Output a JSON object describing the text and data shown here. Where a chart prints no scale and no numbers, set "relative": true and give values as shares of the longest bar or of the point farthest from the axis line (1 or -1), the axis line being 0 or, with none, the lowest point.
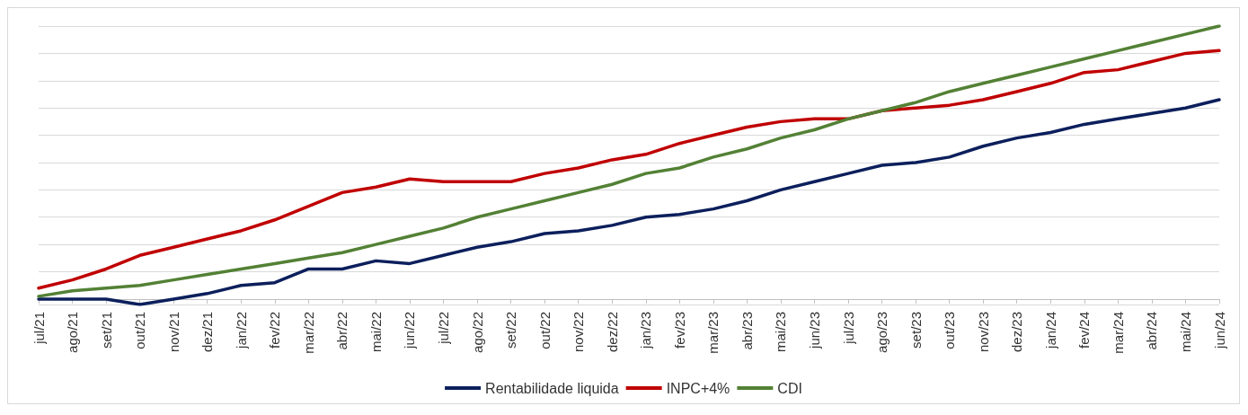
{
  "chart_data": {
    "type": "line",
    "relative": true,
    "grid": "y",
    "legend": "bottom",
    "marker": "none",
    "line_style": "solid",
    "categories": [
      "jul/21",
      "ago/21",
      "set/21",
      "out/21",
      "nov/21",
      "dez/21",
      "jan/22",
      "fev/22",
      "mar/22",
      "abr/22",
      "mai/22",
      "jun/22",
      "jul/22",
      "ago/22",
      "set/22",
      "out/22",
      "nov/22",
      "dez/22",
      "jan/23",
      "fev/23",
      "mar/23",
      "abr/23",
      "mai/23",
      "jun/23",
      "jul/23",
      "ago/23",
      "set/23",
      "out/23",
      "nov/23",
      "dez/23",
      "jan/24",
      "fev/24",
      "mar/24",
      "abr/24",
      "mai/24",
      "jun/24"
    ],
    "series": [
      {
        "name": "Rentabilidade liquida",
        "color": "#0c1f5c",
        "values": [
          0,
          0,
          0,
          -0.02,
          0,
          0.02,
          0.05,
          0.06,
          0.11,
          0.11,
          0.14,
          0.13,
          0.16,
          0.19,
          0.21,
          0.24,
          0.25,
          0.27,
          0.3,
          0.31,
          0.33,
          0.36,
          0.4,
          0.43,
          0.46,
          0.49,
          0.5,
          0.52,
          0.56,
          0.59,
          0.61,
          0.64,
          0.66,
          0.68,
          0.7,
          0.73
        ]
      },
      {
        "name": "INPC+4%",
        "color": "#c00000",
        "values": [
          0.04,
          0.07,
          0.11,
          0.16,
          0.19,
          0.22,
          0.25,
          0.29,
          0.34,
          0.39,
          0.41,
          0.44,
          0.43,
          0.43,
          0.43,
          0.46,
          0.48,
          0.51,
          0.53,
          0.57,
          0.6,
          0.63,
          0.65,
          0.66,
          0.66,
          0.69,
          0.7,
          0.71,
          0.73,
          0.76,
          0.79,
          0.83,
          0.84,
          0.87,
          0.9,
          0.91
        ]
      },
      {
        "name": "CDI",
        "color": "#538135",
        "values": [
          0.01,
          0.03,
          0.04,
          0.05,
          0.07,
          0.09,
          0.11,
          0.13,
          0.15,
          0.17,
          0.2,
          0.23,
          0.26,
          0.3,
          0.33,
          0.36,
          0.39,
          0.42,
          0.46,
          0.48,
          0.52,
          0.55,
          0.59,
          0.62,
          0.66,
          0.69,
          0.72,
          0.76,
          0.79,
          0.82,
          0.85,
          0.88,
          0.91,
          0.94,
          0.97,
          1
        ]
      }
    ]
  }
}
